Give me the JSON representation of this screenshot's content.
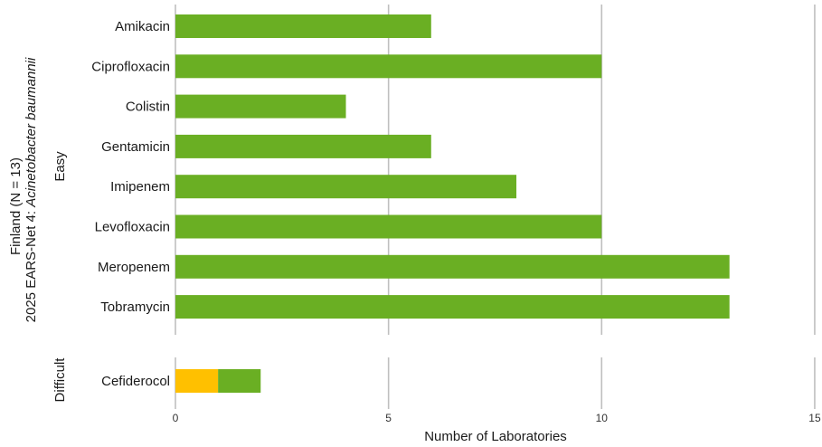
{
  "chart_data": {
    "type": "bar",
    "orientation": "horizontal",
    "stacked": true,
    "title": "",
    "ylabel_line1_prefix": "2025 EARS-Net 4: ",
    "ylabel_line1_organism": "Acinetobacter baumannii",
    "ylabel_line2": "Finland (N = 13)",
    "xlabel": "Number of Laboratories",
    "xlim": [
      0,
      15
    ],
    "xticks": [
      "0",
      "5",
      "10",
      "15"
    ],
    "grid": "vertical",
    "legend": "none",
    "colors": {
      "green": "#6aaf23",
      "yellow": "#ffc000"
    },
    "panels": [
      {
        "facet": "Easy",
        "categories": [
          "Amikacin",
          "Ciprofloxacin",
          "Colistin",
          "Gentamicin",
          "Imipenem",
          "Levofloxacin",
          "Meropenem",
          "Tobramycin"
        ],
        "series": [
          {
            "color": "#ffc000",
            "values": [
              0,
              0,
              0,
              0,
              0,
              0,
              0,
              0
            ]
          },
          {
            "color": "#6aaf23",
            "values": [
              6,
              10,
              4,
              6,
              8,
              10,
              13,
              13
            ]
          }
        ]
      },
      {
        "facet": "Difficult",
        "categories": [
          "Cefiderocol"
        ],
        "series": [
          {
            "color": "#ffc000",
            "values": [
              1
            ]
          },
          {
            "color": "#6aaf23",
            "values": [
              1
            ]
          }
        ]
      }
    ]
  }
}
